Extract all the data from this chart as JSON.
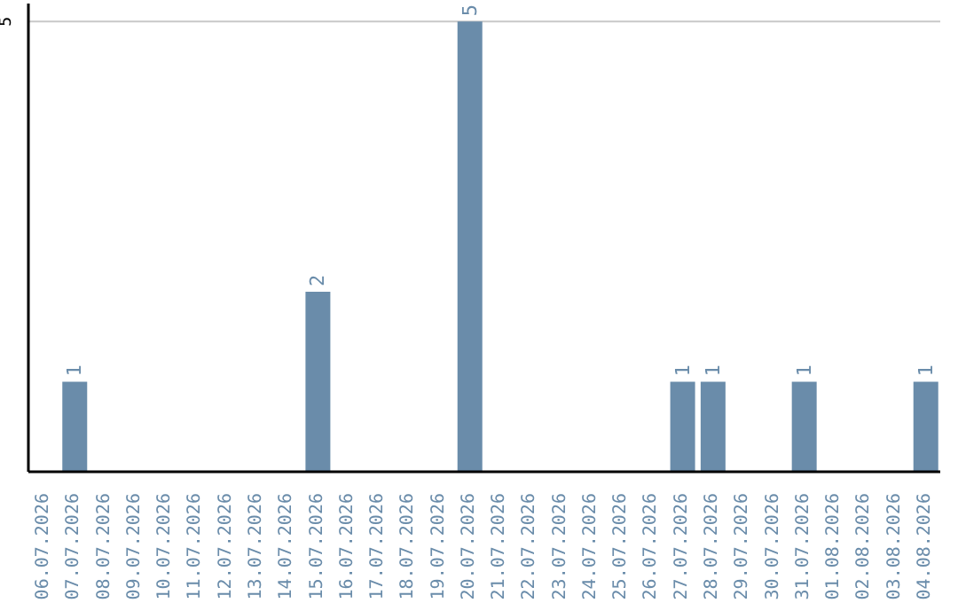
{
  "chart_data": {
    "type": "bar",
    "categories": [
      "06.07.2026",
      "07.07.2026",
      "08.07.2026",
      "09.07.2026",
      "10.07.2026",
      "11.07.2026",
      "12.07.2026",
      "13.07.2026",
      "14.07.2026",
      "15.07.2026",
      "16.07.2026",
      "17.07.2026",
      "18.07.2026",
      "19.07.2026",
      "20.07.2026",
      "21.07.2026",
      "22.07.2026",
      "23.07.2026",
      "24.07.2026",
      "25.07.2026",
      "26.07.2026",
      "27.07.2026",
      "28.07.2026",
      "29.07.2026",
      "30.07.2026",
      "31.07.2026",
      "01.08.2026",
      "02.08.2026",
      "03.08.2026",
      "04.08.2026"
    ],
    "values": [
      0,
      1,
      0,
      0,
      0,
      0,
      0,
      0,
      0,
      2,
      0,
      0,
      0,
      0,
      5,
      0,
      0,
      0,
      0,
      0,
      0,
      1,
      1,
      0,
      0,
      1,
      0,
      0,
      0,
      1
    ],
    "value_labels": [
      null,
      "1",
      null,
      null,
      null,
      null,
      null,
      null,
      null,
      "2",
      null,
      null,
      null,
      null,
      "5",
      null,
      null,
      null,
      null,
      null,
      null,
      "1",
      "1",
      null,
      null,
      "1",
      null,
      null,
      null,
      "1"
    ],
    "color": "#6a8caa",
    "ylim": [
      0,
      5.2
    ],
    "yticks": [
      5
    ],
    "grid": "y"
  }
}
